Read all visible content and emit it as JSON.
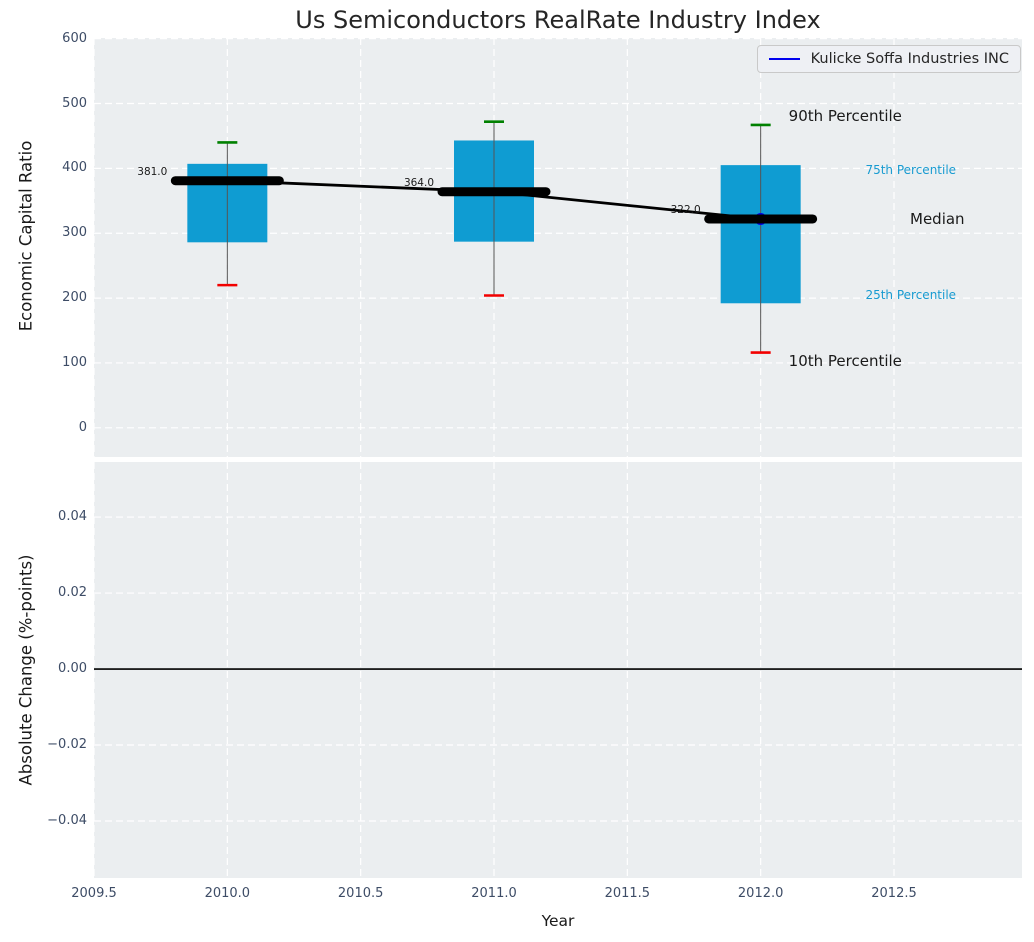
{
  "chart_data": {
    "type": "boxplot",
    "title": "Us Semiconductors RealRate Industry Index",
    "legend": {
      "label": "Kulicke Soffa Industries INC",
      "color": "#0000ee",
      "position": "upper right"
    },
    "colors": {
      "axes_bg": "#ebeef0",
      "grid": "#ffffff",
      "box_fill": "#0f9cd2",
      "cap_top": "#008000",
      "cap_bottom": "#f20000",
      "whisker": "#555555",
      "median": "#000000",
      "trend_line": "#000000",
      "company_marker": "#0000ee",
      "zero_line": "#000000",
      "tick_label": "#3d4c66",
      "text": "#1a1a1a",
      "percentile_accent": "#189bd1"
    },
    "x": {
      "label": "Year",
      "tick_labels": [
        "2009.5",
        "2010.0",
        "2010.5",
        "2011.0",
        "2011.5",
        "2012.0",
        "2012.5"
      ],
      "tick_values": [
        2009.5,
        2010.0,
        2010.5,
        2011.0,
        2011.5,
        2012.0,
        2012.5
      ],
      "lim": [
        2009.5,
        2012.98
      ]
    },
    "top_panel": {
      "ylabel": "Economic Capital Ratio",
      "ytick_labels": [
        "0",
        "100",
        "200",
        "300",
        "400",
        "500",
        "600"
      ],
      "ytick_values": [
        0,
        100,
        200,
        300,
        400,
        500,
        600
      ],
      "ylim": [
        -45,
        601
      ],
      "grid": true,
      "boxes": [
        {
          "year": 2010,
          "p10": 220,
          "p25": 286,
          "median": 381,
          "p75": 407,
          "p90": 440,
          "median_label": "381.0"
        },
        {
          "year": 2011,
          "p10": 204,
          "p25": 287,
          "median": 364,
          "p75": 443,
          "p90": 472,
          "median_label": "364.0"
        },
        {
          "year": 2012,
          "p10": 116,
          "p25": 192,
          "median": 322,
          "p75": 405,
          "p90": 467,
          "median_label": "322.0"
        }
      ],
      "trend_line": [
        {
          "year": 2010,
          "value": 381
        },
        {
          "year": 2011,
          "value": 364
        },
        {
          "year": 2012,
          "value": 322
        }
      ],
      "company_points": [
        {
          "year": 2012,
          "value": 322
        }
      ],
      "annotations": [
        {
          "text": "90th Percentile",
          "year": 2012.105,
          "value": 481,
          "color": "#1a1a1a",
          "size": 15
        },
        {
          "text": "75th Percentile",
          "year": 2012.393,
          "value": 398,
          "color": "#189bd1",
          "size": 12
        },
        {
          "text": "Median",
          "year": 2012.56,
          "value": 322,
          "color": "#1a1a1a",
          "size": 15
        },
        {
          "text": "25th Percentile",
          "year": 2012.393,
          "value": 205,
          "color": "#189bd1",
          "size": 12
        },
        {
          "text": "10th Percentile",
          "year": 2012.105,
          "value": 103,
          "color": "#1a1a1a",
          "size": 15
        }
      ]
    },
    "bottom_panel": {
      "ylabel": "Absolute Change (%-points)",
      "ytick_labels": [
        "0.04",
        "0.02",
        "0.00",
        "−0.02",
        "−0.04"
      ],
      "ytick_values": [
        0.04,
        0.02,
        0.0,
        -0.02,
        -0.04
      ],
      "ylim": [
        -0.055,
        0.0545
      ],
      "grid": true,
      "zero_line": 0.0
    }
  }
}
